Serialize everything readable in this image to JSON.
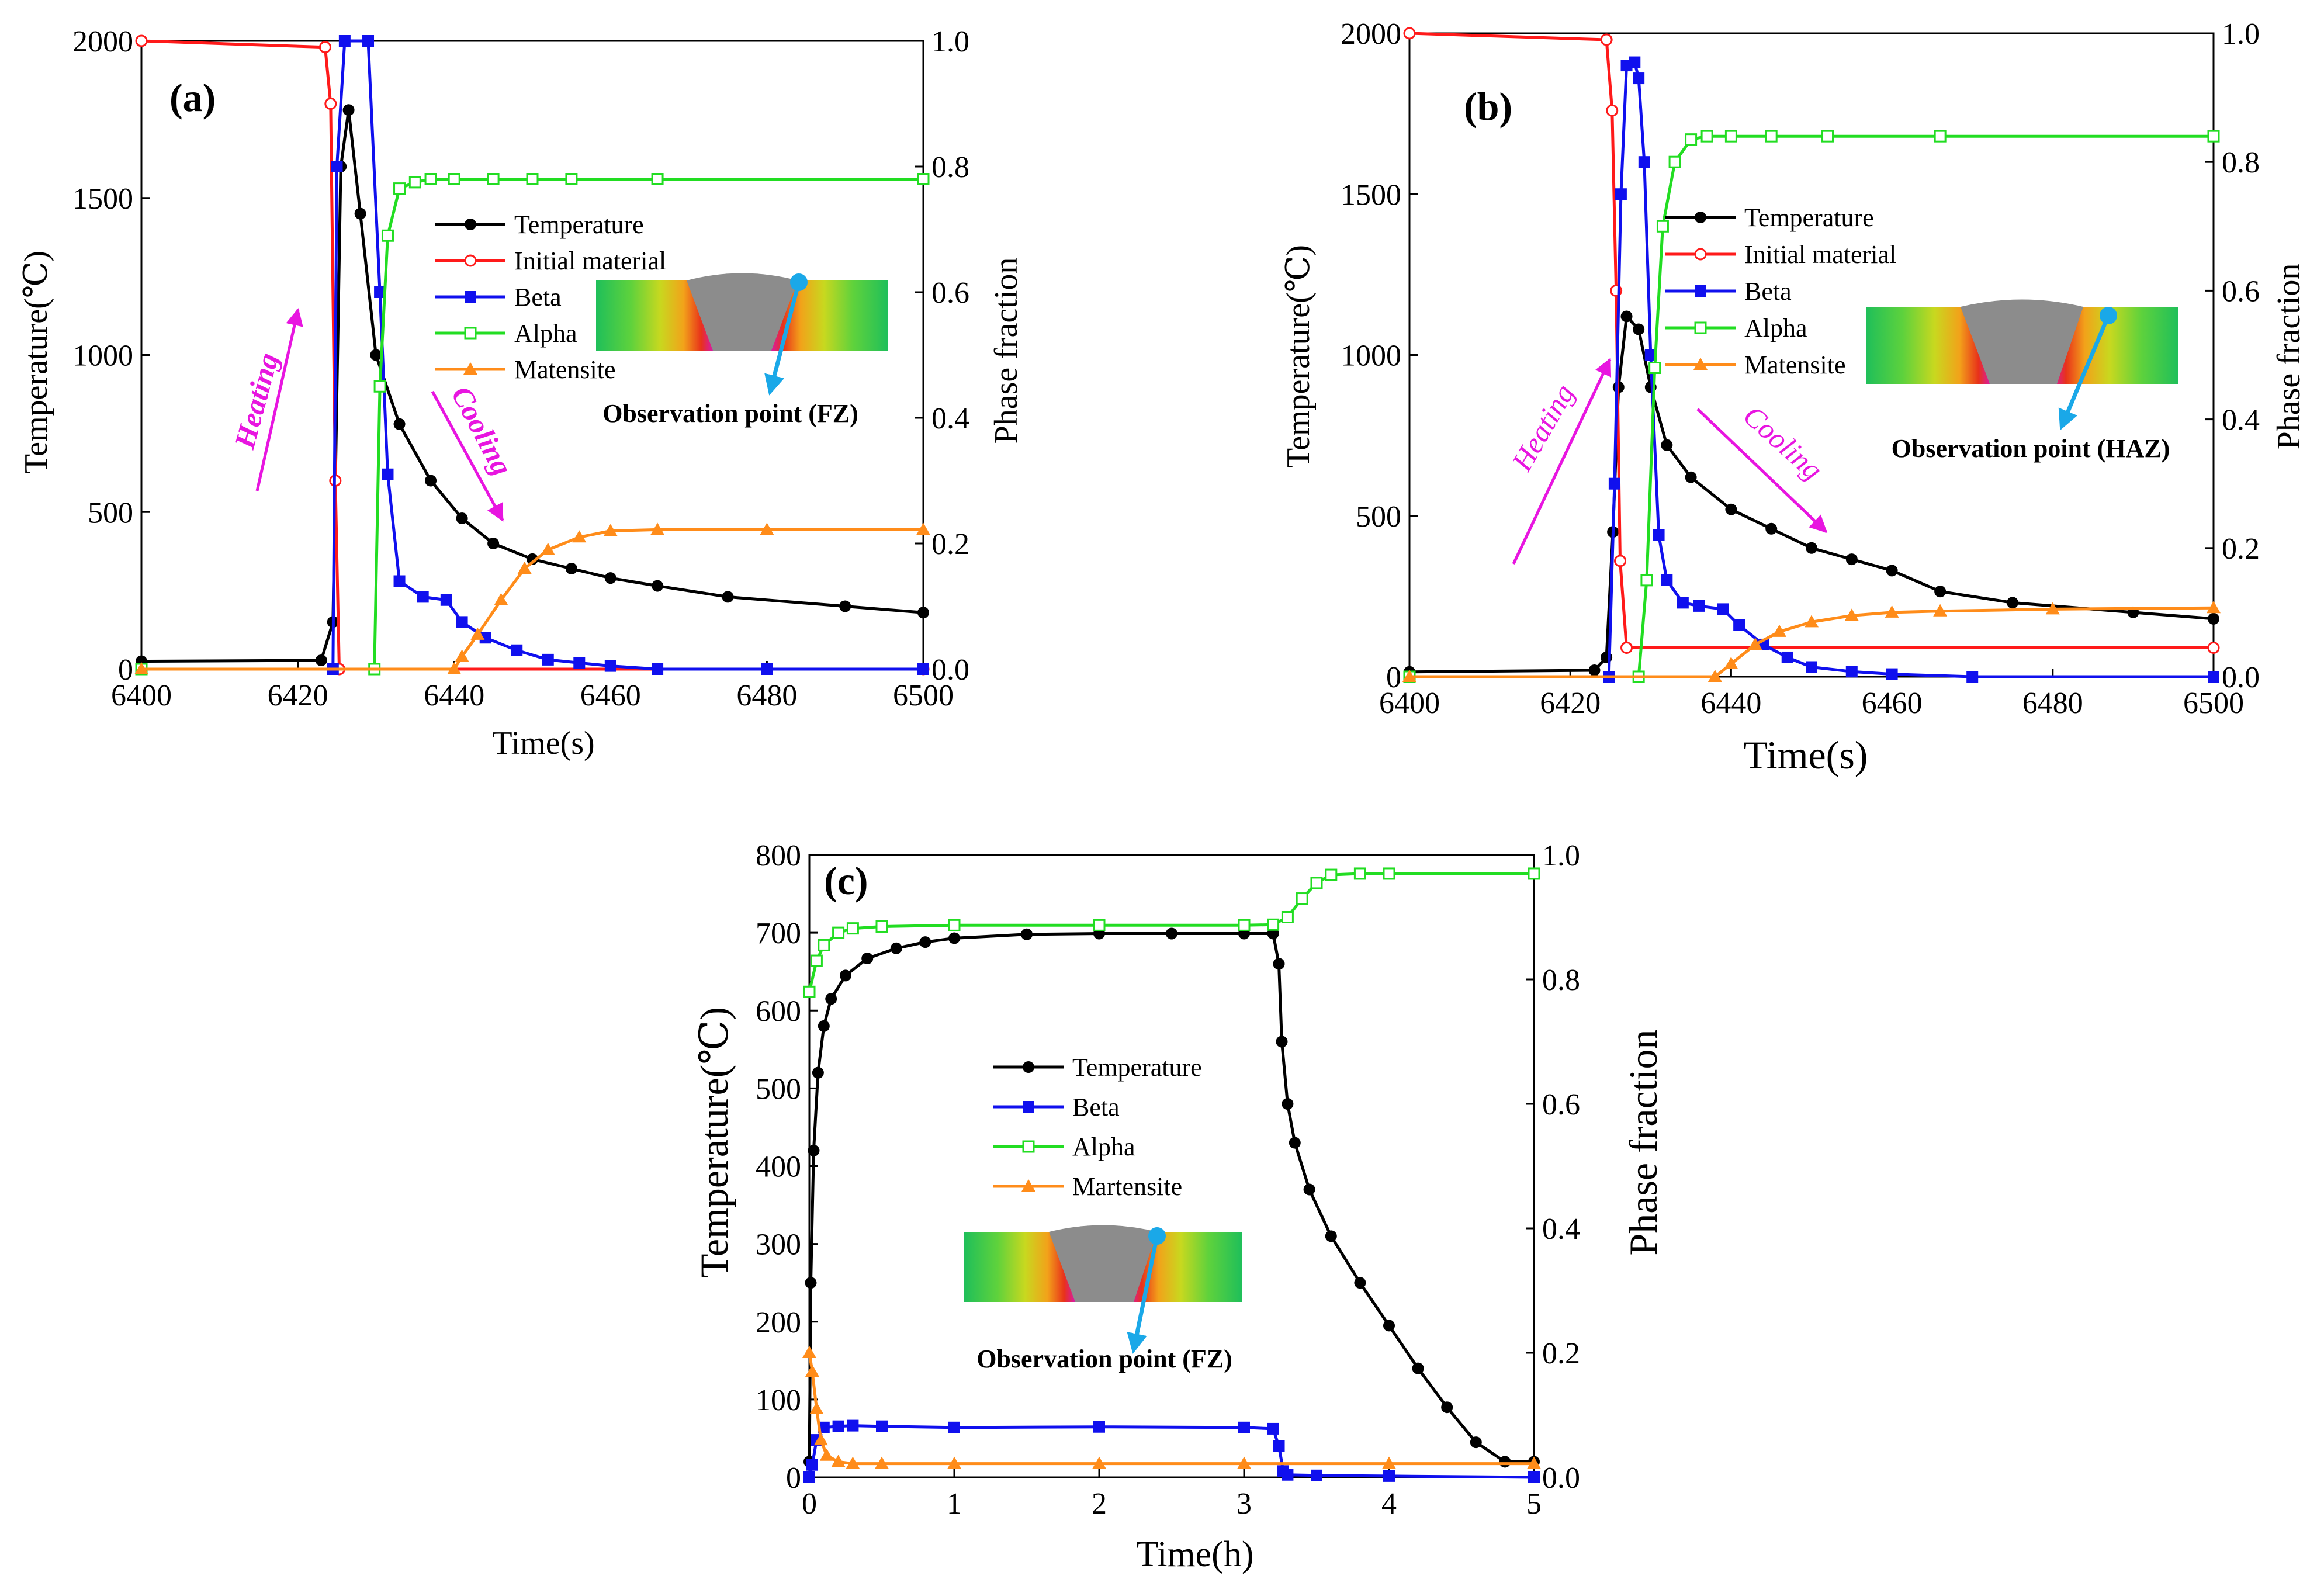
{
  "chart_data": [
    {
      "id": "a",
      "type": "line",
      "panel_label": "(a)",
      "xlabel": "Time(s)",
      "ylabel": "Temperature(℃)",
      "y2label": "Phase fraction",
      "xlim": [
        6400,
        6500
      ],
      "ylim": [
        0,
        2000
      ],
      "y2lim": [
        0,
        1.0
      ],
      "xticks": [
        6400,
        6420,
        6440,
        6460,
        6480,
        6500
      ],
      "yticks": [
        0,
        500,
        1000,
        1500,
        2000
      ],
      "y2ticks": [
        "0.0",
        "0.2",
        "0.4",
        "0.6",
        "0.8",
        "1.0"
      ],
      "annotations": {
        "heating": "Heating",
        "cooling": "Cooling",
        "observation": "Observation point (FZ)"
      },
      "series": [
        {
          "name": "Temperature",
          "axis": "left",
          "color": "#000000",
          "marker": "circle-filled",
          "x": [
            6400,
            6423,
            6424.5,
            6425.5,
            6426.5,
            6428,
            6430,
            6433,
            6437,
            6441,
            6445,
            6450,
            6455,
            6460,
            6466,
            6475,
            6490,
            6500
          ],
          "y": [
            25,
            28,
            150,
            1600,
            1780,
            1450,
            1000,
            780,
            600,
            480,
            400,
            350,
            320,
            290,
            265,
            230,
            200,
            180
          ]
        },
        {
          "name": "Initial material",
          "axis": "right",
          "color": "#ff1a1a",
          "marker": "circle-open",
          "x": [
            6400,
            6423.5,
            6424.2,
            6424.8,
            6425.3,
            6500
          ],
          "y": [
            1.0,
            0.99,
            0.9,
            0.3,
            0.0,
            0.0
          ]
        },
        {
          "name": "Beta",
          "axis": "right",
          "color": "#1010ee",
          "marker": "square-filled",
          "x": [
            6400,
            6424.5,
            6425,
            6426,
            6429,
            6430.5,
            6431.5,
            6433,
            6436,
            6439,
            6441,
            6444,
            6448,
            6452,
            6456,
            6460,
            6466,
            6480,
            6500
          ],
          "y": [
            0.0,
            0.0,
            0.8,
            1.0,
            1.0,
            0.6,
            0.31,
            0.14,
            0.115,
            0.11,
            0.075,
            0.05,
            0.03,
            0.015,
            0.01,
            0.005,
            0.0,
            0.0,
            0.0
          ]
        },
        {
          "name": "Alpha",
          "axis": "right",
          "color": "#22dd22",
          "marker": "square-open",
          "x": [
            6400,
            6429.8,
            6430.5,
            6431.5,
            6433,
            6435,
            6437,
            6440,
            6445,
            6450,
            6455,
            6466,
            6500
          ],
          "y": [
            0.0,
            0.0,
            0.45,
            0.69,
            0.765,
            0.775,
            0.78,
            0.78,
            0.78,
            0.78,
            0.78,
            0.78,
            0.78
          ]
        },
        {
          "name": "Matensite",
          "axis": "right",
          "color": "#ff8c1a",
          "marker": "triangle-filled",
          "x": [
            6400,
            6440,
            6441,
            6443,
            6446,
            6449,
            6452,
            6456,
            6460,
            6466,
            6480,
            6500
          ],
          "y": [
            0.0,
            0.0,
            0.02,
            0.055,
            0.11,
            0.16,
            0.19,
            0.21,
            0.22,
            0.222,
            0.222,
            0.222
          ]
        }
      ]
    },
    {
      "id": "b",
      "type": "line",
      "panel_label": "(b)",
      "xlabel": "Time(s)",
      "ylabel": "Temperature(℃)",
      "y2label": "Phase fraction",
      "xlim": [
        6400,
        6500
      ],
      "ylim": [
        0,
        2000
      ],
      "y2lim": [
        0,
        1.0
      ],
      "xticks": [
        6400,
        6420,
        6440,
        6460,
        6480,
        6500
      ],
      "yticks": [
        0,
        500,
        1000,
        1500,
        2000
      ],
      "y2ticks": [
        "0.0",
        "0.2",
        "0.4",
        "0.6",
        "0.8",
        "1.0"
      ],
      "annotations": {
        "heating": "Heating",
        "cooling": "Cooling",
        "observation": "Observation point (HAZ)"
      },
      "series": [
        {
          "name": "Temperature",
          "axis": "left",
          "color": "#000000",
          "marker": "circle-filled",
          "x": [
            6400,
            6423,
            6424.5,
            6425.3,
            6426,
            6427,
            6428.5,
            6430,
            6432,
            6435,
            6440,
            6445,
            6450,
            6455,
            6460,
            6466,
            6475,
            6490,
            6500
          ],
          "y": [
            15,
            20,
            60,
            450,
            900,
            1120,
            1080,
            900,
            720,
            620,
            520,
            460,
            400,
            365,
            330,
            265,
            230,
            200,
            180
          ]
        },
        {
          "name": "Initial material",
          "axis": "right",
          "color": "#ff1a1a",
          "marker": "circle-open",
          "x": [
            6400,
            6424.5,
            6425.2,
            6425.7,
            6426.2,
            6427,
            6500
          ],
          "y": [
            1.0,
            0.99,
            0.88,
            0.6,
            0.18,
            0.045,
            0.045
          ]
        },
        {
          "name": "Beta",
          "axis": "right",
          "color": "#1010ee",
          "marker": "square-filled",
          "x": [
            6400,
            6424.8,
            6425.5,
            6426.3,
            6427,
            6428,
            6428.5,
            6429.2,
            6430,
            6431,
            6432,
            6434,
            6436,
            6439,
            6441,
            6444,
            6447,
            6450,
            6455,
            6460,
            6470,
            6500
          ],
          "y": [
            0.0,
            0.0,
            0.3,
            0.75,
            0.95,
            0.955,
            0.93,
            0.8,
            0.5,
            0.22,
            0.15,
            0.115,
            0.11,
            0.105,
            0.08,
            0.05,
            0.03,
            0.015,
            0.008,
            0.004,
            0.0,
            0.0
          ]
        },
        {
          "name": "Alpha",
          "axis": "right",
          "color": "#22dd22",
          "marker": "square-open",
          "x": [
            6400,
            6428.5,
            6429.5,
            6430.5,
            6431.5,
            6433,
            6435,
            6437,
            6440,
            6445,
            6452,
            6466,
            6500
          ],
          "y": [
            0.0,
            0.0,
            0.15,
            0.48,
            0.7,
            0.8,
            0.835,
            0.84,
            0.84,
            0.84,
            0.84,
            0.84,
            0.84
          ]
        },
        {
          "name": "Matensite",
          "axis": "right",
          "color": "#ff8c1a",
          "marker": "triangle-filled",
          "x": [
            6400,
            6438,
            6440,
            6443,
            6446,
            6450,
            6455,
            6460,
            6466,
            6480,
            6500
          ],
          "y": [
            0.0,
            0.0,
            0.02,
            0.05,
            0.07,
            0.085,
            0.095,
            0.1,
            0.102,
            0.105,
            0.107
          ]
        }
      ]
    },
    {
      "id": "c",
      "type": "line",
      "panel_label": "(c)",
      "xlabel": "Time(h)",
      "ylabel": "Temperature(℃)",
      "y2label": "Phase fraction",
      "xlim": [
        0,
        5
      ],
      "ylim": [
        0,
        800
      ],
      "y2lim": [
        0,
        1.0
      ],
      "xticks": [
        0,
        1,
        2,
        3,
        4,
        5
      ],
      "yticks": [
        0,
        100,
        200,
        300,
        400,
        500,
        600,
        700,
        800
      ],
      "y2ticks": [
        "0.0",
        "0.2",
        "0.4",
        "0.6",
        "0.8",
        "1.0"
      ],
      "annotations": {
        "observation": "Observation point (FZ)"
      },
      "series": [
        {
          "name": "Temperature",
          "axis": "left",
          "color": "#000000",
          "marker": "circle-filled",
          "x": [
            0,
            0.01,
            0.03,
            0.06,
            0.1,
            0.15,
            0.25,
            0.4,
            0.6,
            0.8,
            1.0,
            1.5,
            2.0,
            2.5,
            3.0,
            3.2,
            3.24,
            3.26,
            3.3,
            3.35,
            3.45,
            3.6,
            3.8,
            4.0,
            4.2,
            4.4,
            4.6,
            4.8,
            5.0
          ],
          "y": [
            20,
            250,
            420,
            520,
            580,
            615,
            645,
            667,
            680,
            688,
            693,
            698,
            699,
            699,
            699,
            699,
            660,
            560,
            480,
            430,
            370,
            310,
            250,
            195,
            140,
            90,
            45,
            20,
            20
          ]
        },
        {
          "name": "Beta",
          "axis": "right",
          "color": "#1010ee",
          "marker": "square-filled",
          "x": [
            0,
            0.02,
            0.05,
            0.1,
            0.2,
            0.3,
            0.5,
            1.0,
            2.0,
            3.0,
            3.2,
            3.24,
            3.27,
            3.3,
            3.5,
            4.0,
            5.0
          ],
          "y": [
            0.0,
            0.02,
            0.06,
            0.08,
            0.082,
            0.083,
            0.082,
            0.08,
            0.081,
            0.08,
            0.078,
            0.05,
            0.01,
            0.004,
            0.003,
            0.002,
            0.0
          ]
        },
        {
          "name": "Alpha",
          "axis": "right",
          "color": "#22dd22",
          "marker": "square-open",
          "x": [
            0,
            0.05,
            0.1,
            0.2,
            0.3,
            0.5,
            1.0,
            2.0,
            3.0,
            3.2,
            3.3,
            3.4,
            3.5,
            3.6,
            3.8,
            4.0,
            5.0
          ],
          "y": [
            0.78,
            0.83,
            0.855,
            0.875,
            0.882,
            0.885,
            0.887,
            0.887,
            0.887,
            0.888,
            0.9,
            0.93,
            0.955,
            0.968,
            0.97,
            0.97,
            0.97
          ]
        },
        {
          "name": "Martensite",
          "axis": "right",
          "color": "#ff8c1a",
          "marker": "triangle-filled",
          "x": [
            0,
            0.02,
            0.05,
            0.08,
            0.12,
            0.2,
            0.3,
            0.5,
            1.0,
            2.0,
            3.0,
            4.0,
            5.0
          ],
          "y": [
            0.2,
            0.17,
            0.11,
            0.06,
            0.035,
            0.025,
            0.022,
            0.022,
            0.022,
            0.022,
            0.022,
            0.022,
            0.022
          ]
        }
      ]
    }
  ]
}
